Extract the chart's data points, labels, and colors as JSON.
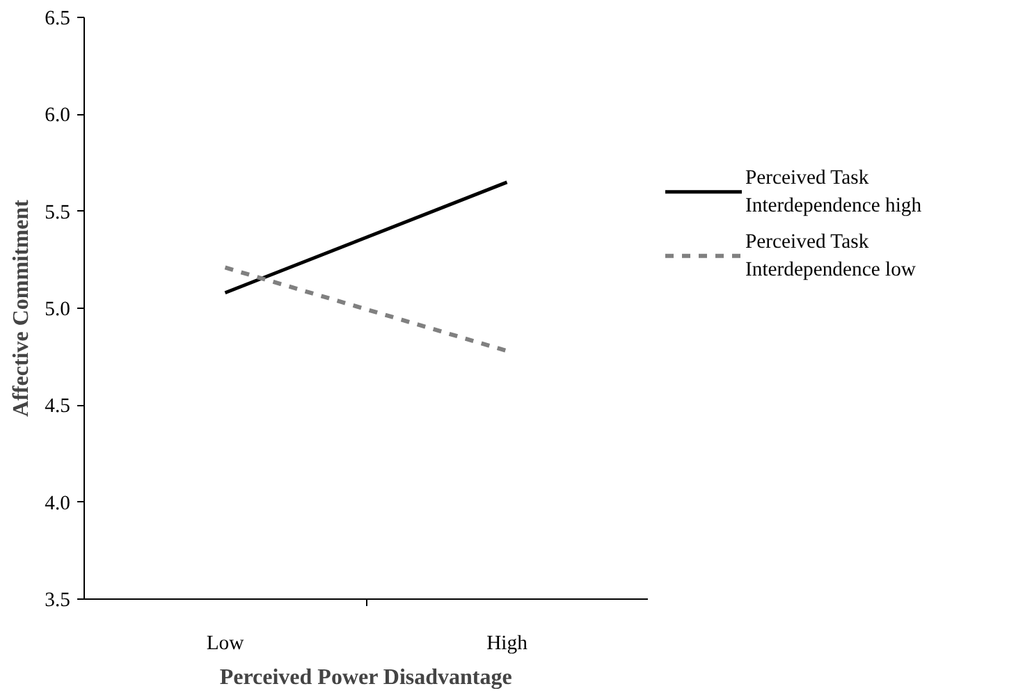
{
  "chart_data": {
    "type": "line",
    "xlabel": "Perceived Power Disadvantage",
    "ylabel": "Affective Commitment",
    "categories": [
      "Low",
      "High"
    ],
    "series": [
      {
        "name": "Perceived Task Interdependence high",
        "color": "#000000",
        "line_style": "solid",
        "values": [
          5.08,
          5.65
        ]
      },
      {
        "name": "Perceived Task Interdependence low",
        "color": "#808080",
        "line_style": "dashed",
        "values": [
          5.21,
          4.78
        ]
      }
    ],
    "ylim": [
      3.5,
      6.5
    ],
    "yticks": [
      3.5,
      {
        "value": 4,
        "label": "4.0"
      },
      4.5,
      {
        "value": 5,
        "label": "5.0"
      },
      5.5,
      {
        "value": 6,
        "label": "6.0"
      },
      6.5
    ],
    "grid": false,
    "legend": "right",
    "marker": "none"
  }
}
